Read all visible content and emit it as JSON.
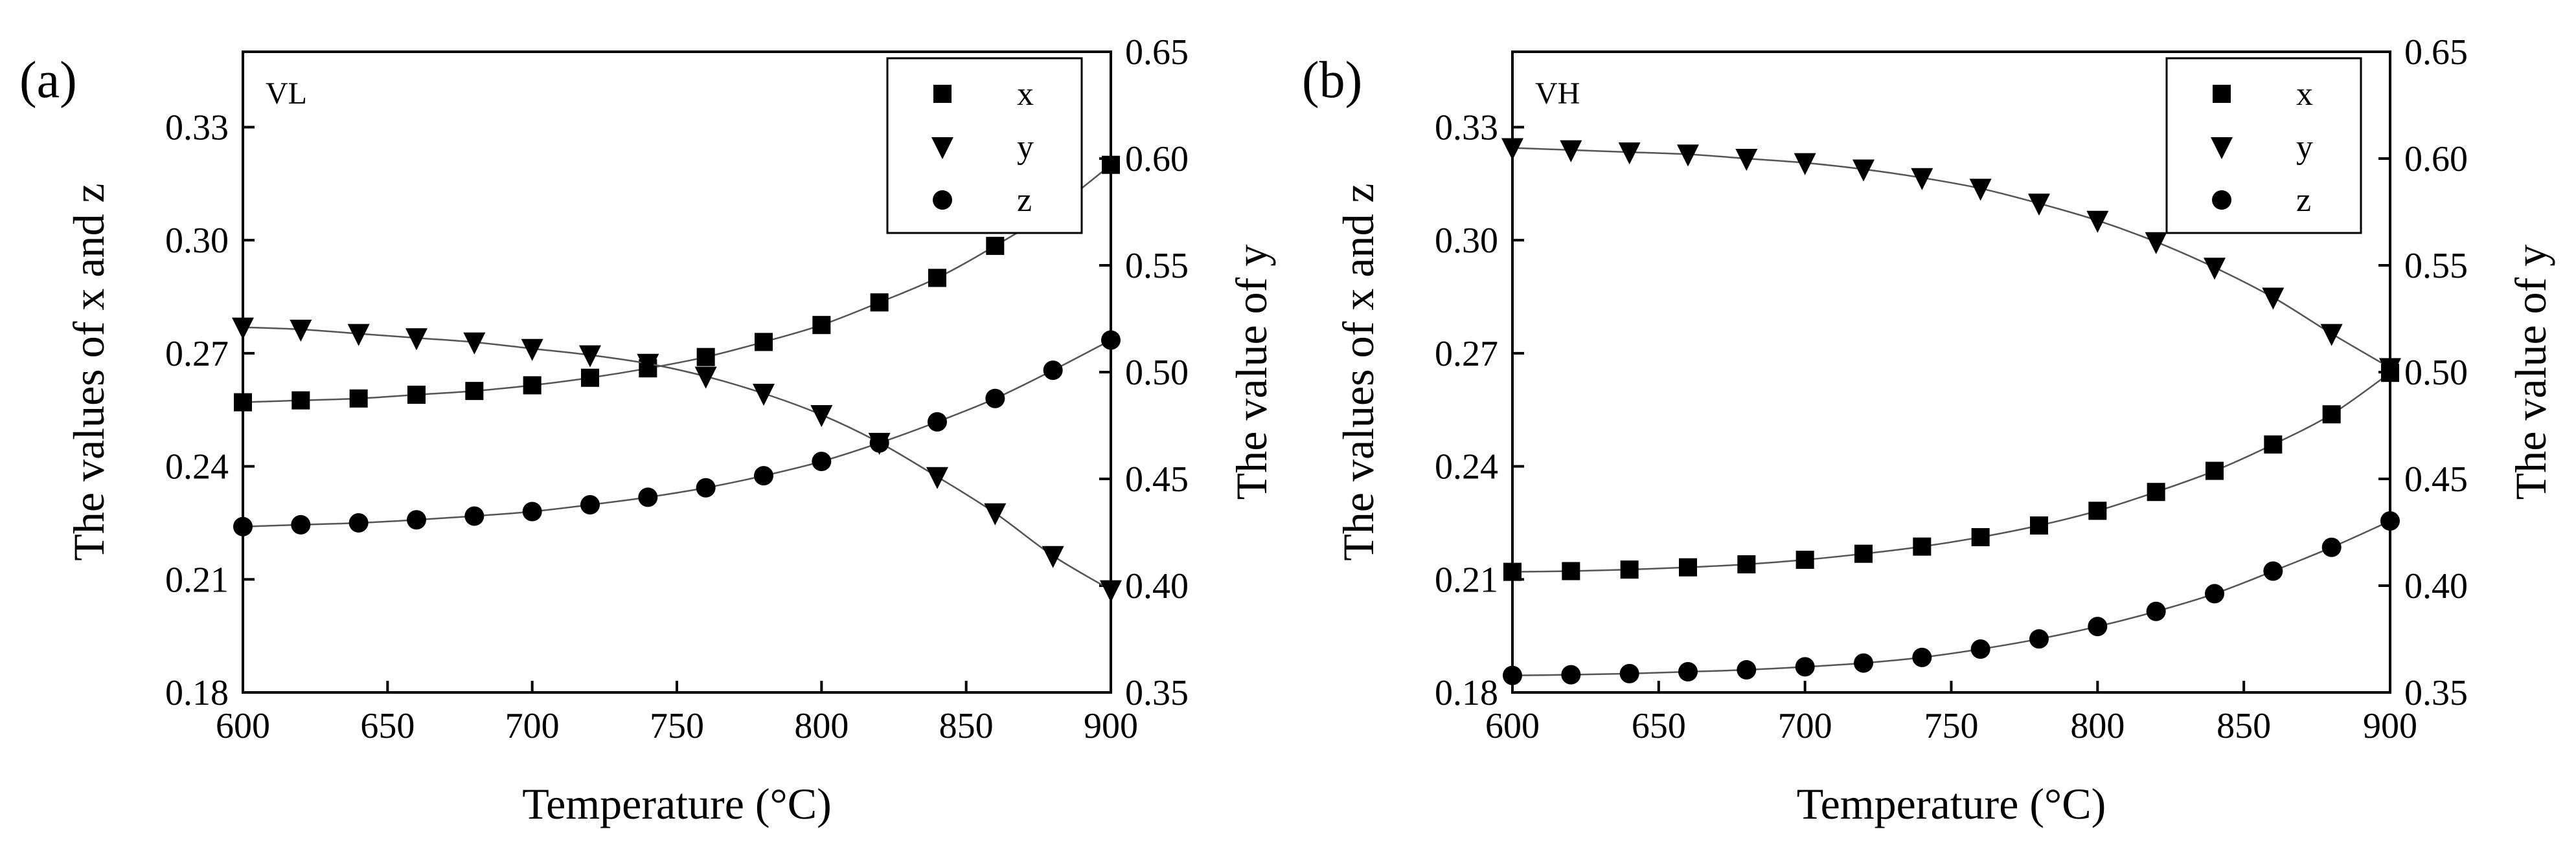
{
  "chart_data": [
    {
      "type": "scatter",
      "panel_label": "(a)",
      "corner_label": "VL",
      "xlabel": "Temperature (°C)",
      "ylabel_left": "The values of x and z",
      "ylabel_right": "The value of y",
      "xlim": [
        600,
        900
      ],
      "ylim_left": [
        0.18,
        0.35
      ],
      "ylim_right": [
        0.35,
        0.65
      ],
      "xticks": [
        600,
        650,
        700,
        750,
        800,
        850,
        900
      ],
      "xtick_labels": [
        "600",
        "650",
        "700",
        "750",
        "800",
        "850",
        "900"
      ],
      "yticks_left": [
        0.18,
        0.21,
        0.24,
        0.27,
        0.3,
        0.33
      ],
      "ytick_labels_left": [
        "0.18",
        "0.21",
        "0.24",
        "0.27",
        "0.30",
        "0.33"
      ],
      "yticks_right": [
        0.35,
        0.4,
        0.45,
        0.5,
        0.55,
        0.6,
        0.65
      ],
      "ytick_labels_right": [
        "0.35",
        "0.40",
        "0.45",
        "0.50",
        "0.55",
        "0.60",
        "0.65"
      ],
      "legend_position": "top-right",
      "x": [
        600,
        620,
        640,
        660,
        680,
        700,
        720,
        740,
        760,
        780,
        800,
        820,
        840,
        860,
        880,
        900
      ],
      "series": [
        {
          "name": "x",
          "marker": "square",
          "axis": "left",
          "values": [
            0.257,
            0.2575,
            0.258,
            0.259,
            0.26,
            0.2615,
            0.2635,
            0.266,
            0.269,
            0.273,
            0.2775,
            0.2835,
            0.29,
            0.2985,
            0.308,
            0.32
          ]
        },
        {
          "name": "y",
          "marker": "triangle-down",
          "axis": "right",
          "values": [
            0.521,
            0.52,
            0.518,
            0.516,
            0.514,
            0.511,
            0.508,
            0.504,
            0.498,
            0.49,
            0.48,
            0.467,
            0.451,
            0.434,
            0.414,
            0.398
          ]
        },
        {
          "name": "z",
          "marker": "circle",
          "axis": "left",
          "values": [
            0.224,
            0.2245,
            0.225,
            0.2258,
            0.2268,
            0.228,
            0.2298,
            0.2318,
            0.2343,
            0.2375,
            0.2413,
            0.2462,
            0.2518,
            0.258,
            0.2655,
            0.2735
          ]
        }
      ]
    },
    {
      "type": "scatter",
      "panel_label": "(b)",
      "corner_label": "VH",
      "xlabel": "Temperature (°C)",
      "ylabel_left": "The values of x and z",
      "ylabel_right": "The value of y",
      "xlim": [
        600,
        900
      ],
      "ylim_left": [
        0.18,
        0.35
      ],
      "ylim_right": [
        0.35,
        0.65
      ],
      "xticks": [
        600,
        650,
        700,
        750,
        800,
        850,
        900
      ],
      "xtick_labels": [
        "600",
        "650",
        "700",
        "750",
        "800",
        "850",
        "900"
      ],
      "yticks_left": [
        0.18,
        0.21,
        0.24,
        0.27,
        0.3,
        0.33
      ],
      "ytick_labels_left": [
        "0.18",
        "0.21",
        "0.24",
        "0.27",
        "0.30",
        "0.33"
      ],
      "yticks_right": [
        0.35,
        0.4,
        0.45,
        0.5,
        0.55,
        0.6,
        0.65
      ],
      "ytick_labels_right": [
        "0.35",
        "0.40",
        "0.45",
        "0.50",
        "0.55",
        "0.60",
        "0.65"
      ],
      "legend_position": "top-right",
      "x": [
        600,
        620,
        640,
        660,
        680,
        700,
        720,
        740,
        760,
        780,
        800,
        820,
        840,
        860,
        880,
        900
      ],
      "series": [
        {
          "name": "x",
          "marker": "square",
          "axis": "left",
          "values": [
            0.212,
            0.2122,
            0.2126,
            0.2132,
            0.214,
            0.2152,
            0.2168,
            0.2187,
            0.2212,
            0.2243,
            0.2282,
            0.2332,
            0.2388,
            0.2458,
            0.2538,
            0.2648
          ]
        },
        {
          "name": "y",
          "marker": "triangle-down",
          "axis": "right",
          "values": [
            0.605,
            0.604,
            0.603,
            0.602,
            0.6,
            0.598,
            0.595,
            0.591,
            0.586,
            0.579,
            0.571,
            0.561,
            0.549,
            0.535,
            0.518,
            0.502
          ]
        },
        {
          "name": "z",
          "marker": "circle",
          "axis": "left",
          "values": [
            0.1845,
            0.1847,
            0.185,
            0.1855,
            0.186,
            0.1868,
            0.1878,
            0.1893,
            0.1915,
            0.1942,
            0.1975,
            0.2015,
            0.2062,
            0.2122,
            0.2185,
            0.2255
          ]
        }
      ]
    }
  ]
}
